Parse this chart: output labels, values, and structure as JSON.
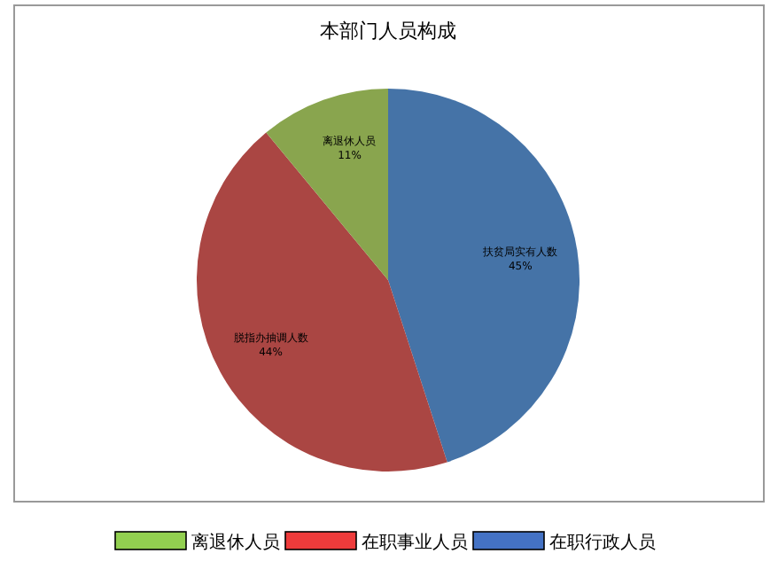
{
  "chart_data": {
    "type": "pie",
    "title": "本部门人员构成",
    "categories": [
      "扶贫局实有人数",
      "脱指办抽调人数",
      "离退休人员"
    ],
    "values": [
      45,
      44,
      11
    ],
    "colors": [
      "#4573a7",
      "#aa4643",
      "#89a54e"
    ],
    "value_labels": [
      "45%",
      "44%",
      "11%"
    ],
    "annotations": [
      "离退休人员",
      "在职事业人员",
      "在职行政人员"
    ]
  }
}
